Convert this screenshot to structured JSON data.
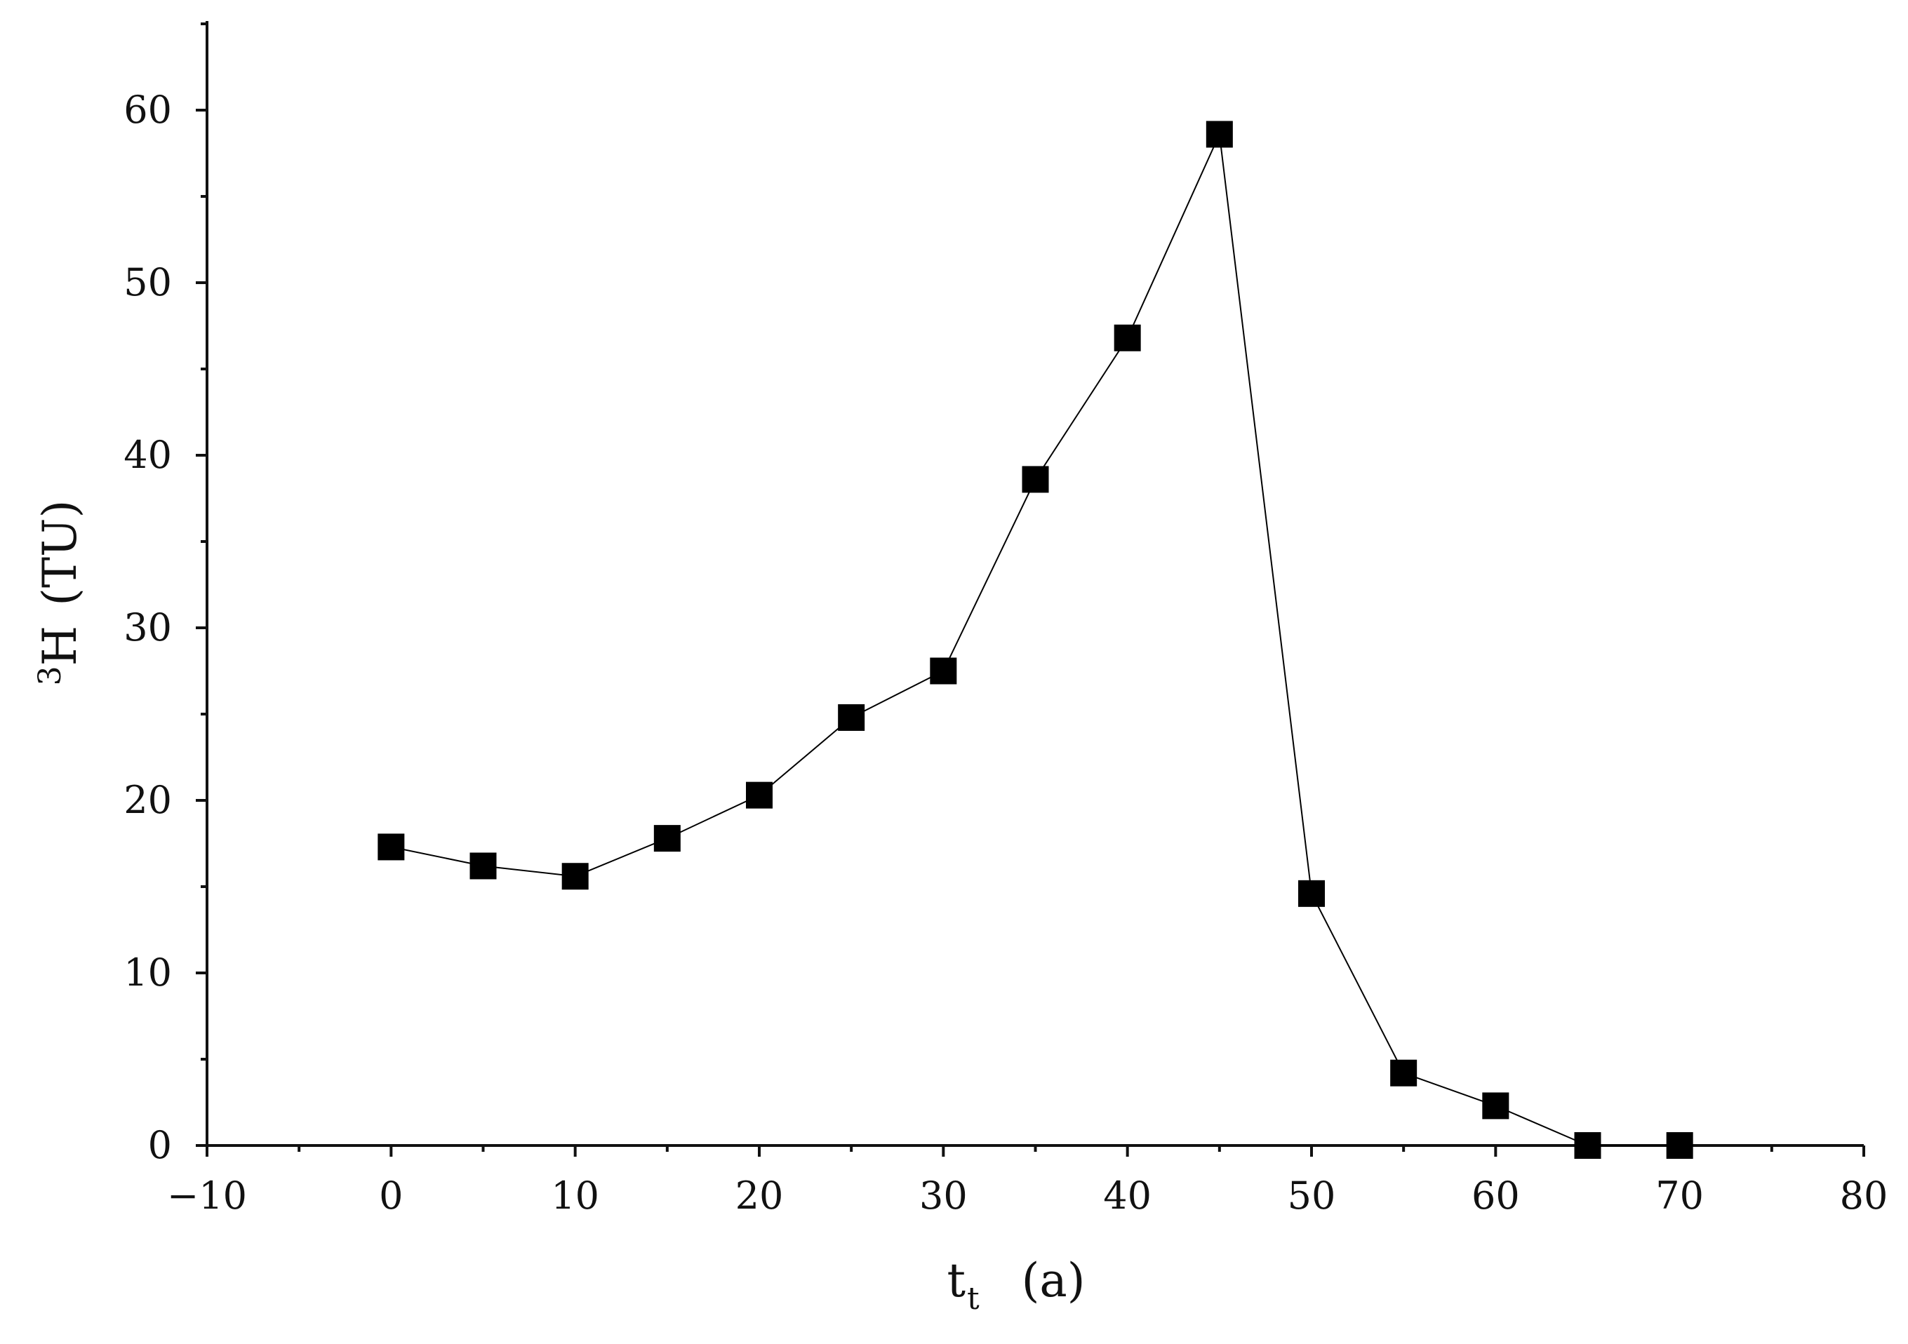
{
  "chart_data": {
    "type": "line",
    "title": "",
    "xlabel": {
      "main": "t",
      "sub": "t",
      "unit": "(a)"
    },
    "ylabel": {
      "sup": "3",
      "main": "H",
      "unit": "(TU)"
    },
    "xlim": [
      -10,
      80
    ],
    "ylim": [
      0,
      65
    ],
    "x_ticks": [
      -10,
      0,
      10,
      20,
      30,
      40,
      50,
      60,
      70,
      80
    ],
    "x_tick_labels": [
      "−10",
      "0",
      "10",
      "20",
      "30",
      "40",
      "50",
      "60",
      "70",
      "80"
    ],
    "y_ticks": [
      0,
      10,
      20,
      30,
      40,
      50,
      60
    ],
    "y_tick_labels": [
      "0",
      "10",
      "20",
      "30",
      "40",
      "50",
      "60"
    ],
    "grid": false,
    "legend": "none",
    "marker": "square",
    "color": "#000000",
    "series": [
      {
        "x": [
          0,
          5,
          10,
          15,
          20,
          25,
          30,
          35,
          40,
          45,
          50,
          55,
          60,
          65,
          70
        ],
        "y": [
          17.3,
          16.2,
          15.6,
          17.8,
          20.3,
          24.8,
          27.5,
          38.6,
          46.8,
          58.6,
          14.6,
          4.2,
          2.3,
          0.0,
          0.0
        ]
      }
    ]
  }
}
